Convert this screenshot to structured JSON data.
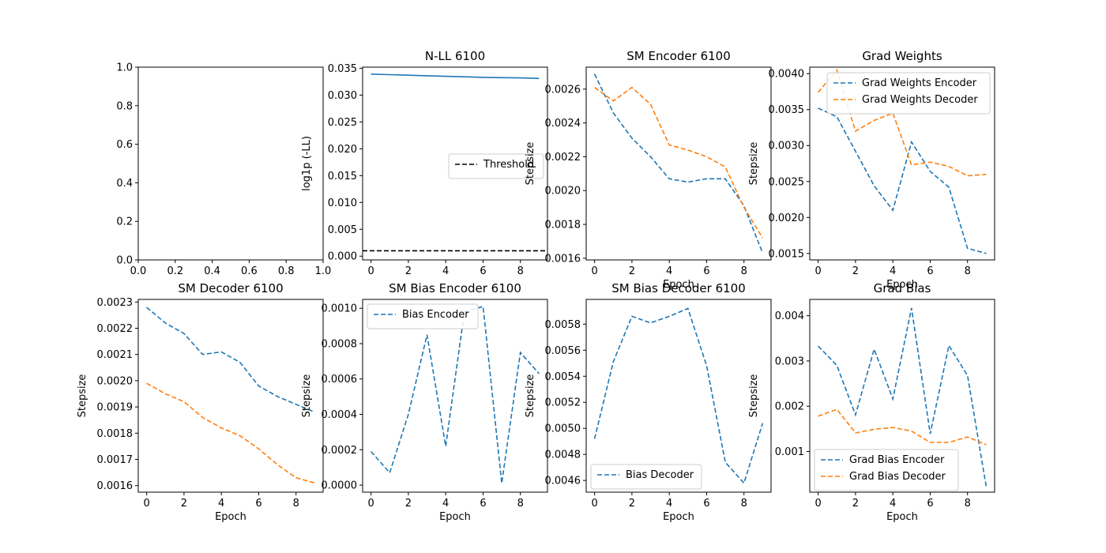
{
  "figure": {
    "background": "#ffffff"
  },
  "chart_data": [
    {
      "id": "empty",
      "type": "line",
      "title": "",
      "xlabel": "",
      "ylabel": "",
      "xlim": [
        0,
        1
      ],
      "ylim": [
        0,
        1
      ],
      "xticks": [
        0,
        0.2,
        0.4,
        0.6,
        0.8,
        1
      ],
      "yticks": [
        0,
        0.2,
        0.4,
        0.6,
        0.8,
        1
      ],
      "xtick_labels": [
        "0.0",
        "0.2",
        "0.4",
        "0.6",
        "0.8",
        "1.0"
      ],
      "ytick_labels": [
        "0.0",
        "0.2",
        "0.4",
        "0.6",
        "0.8",
        "1.0"
      ],
      "grid": false,
      "series": []
    },
    {
      "id": "nll",
      "type": "line",
      "title": "N-LL 6100",
      "xlabel": "",
      "ylabel": "log1p (-LL)",
      "xlim": [
        -0.45,
        9.45
      ],
      "ylim": [
        -0.0007,
        0.0352
      ],
      "xticks": [
        0,
        2,
        4,
        6,
        8
      ],
      "yticks": [
        0,
        0.005,
        0.01,
        0.015,
        0.02,
        0.025,
        0.03,
        0.035
      ],
      "xtick_labels": [
        "0",
        "2",
        "4",
        "6",
        "8"
      ],
      "ytick_labels": [
        "0.000",
        "0.005",
        "0.010",
        "0.015",
        "0.020",
        "0.025",
        "0.030",
        "0.035"
      ],
      "grid": false,
      "legend": {
        "position": "center-right",
        "entries": [
          "Threshold"
        ]
      },
      "series": [
        {
          "x": [
            0,
            1,
            2,
            3,
            4,
            5,
            6,
            7,
            8,
            9
          ],
          "values": [
            0.0339,
            0.0338,
            0.0337,
            0.0336,
            0.0335,
            0.0334,
            0.0333,
            0.03325,
            0.0332,
            0.0331
          ],
          "color": "#1f77b4",
          "dash": "solid"
        },
        {
          "name": "Threshold",
          "hline": 0.001,
          "color": "#000000",
          "dash": "dashed"
        }
      ]
    },
    {
      "id": "sm_encoder",
      "type": "line",
      "title": "SM Encoder 6100",
      "xlabel": "Epoch",
      "ylabel": "Stepsize",
      "xlim": [
        -0.45,
        9.45
      ],
      "ylim": [
        0.00159,
        0.00273
      ],
      "xticks": [
        0,
        2,
        4,
        6,
        8
      ],
      "yticks": [
        0.0016,
        0.0018,
        0.002,
        0.0022,
        0.0024,
        0.0026
      ],
      "xtick_labels": [
        "0",
        "2",
        "4",
        "6",
        "8"
      ],
      "ytick_labels": [
        "0.0016",
        "0.0018",
        "0.0020",
        "0.0022",
        "0.0024",
        "0.0026"
      ],
      "grid": false,
      "series": [
        {
          "x": [
            0,
            1,
            2,
            3,
            4,
            5,
            6,
            7,
            8,
            9
          ],
          "values": [
            0.00269,
            0.00246,
            0.00231,
            0.0022,
            0.00207,
            0.00205,
            0.00207,
            0.00207,
            0.00191,
            0.00163
          ],
          "color": "#1f77b4",
          "dash": "dashed"
        },
        {
          "x": [
            0,
            1,
            2,
            3,
            4,
            5,
            6,
            7,
            8,
            9
          ],
          "values": [
            0.00261,
            0.00253,
            0.00261,
            0.00251,
            0.00227,
            0.00224,
            0.0022,
            0.00214,
            0.0019,
            0.00172
          ],
          "color": "#ff7f0e",
          "dash": "dashed"
        }
      ]
    },
    {
      "id": "grad_weights",
      "type": "line",
      "title": "Grad Weights",
      "xlabel": "Epoch",
      "ylabel": "Stepsize",
      "xlim": [
        -0.45,
        9.45
      ],
      "ylim": [
        0.00141,
        0.00409
      ],
      "xticks": [
        0,
        2,
        4,
        6,
        8
      ],
      "yticks": [
        0.0015,
        0.002,
        0.0025,
        0.003,
        0.0035,
        0.004
      ],
      "xtick_labels": [
        "0",
        "2",
        "4",
        "6",
        "8"
      ],
      "ytick_labels": [
        "0.0015",
        "0.0020",
        "0.0025",
        "0.0030",
        "0.0035",
        "0.0040"
      ],
      "grid": false,
      "legend": {
        "position": "upper-right",
        "entries": [
          "Grad Weights Encoder",
          "Grad Weights Decoder"
        ]
      },
      "series": [
        {
          "name": "Grad Weights Encoder",
          "x": [
            0,
            1,
            2,
            3,
            4,
            5,
            6,
            7,
            8,
            9
          ],
          "values": [
            0.00352,
            0.0034,
            0.00292,
            0.00244,
            0.0021,
            0.00305,
            0.00264,
            0.00242,
            0.00157,
            0.0015
          ],
          "color": "#1f77b4",
          "dash": "dashed"
        },
        {
          "name": "Grad Weights Decoder",
          "x": [
            0,
            1,
            2,
            3,
            4,
            5,
            6,
            7,
            8,
            9
          ],
          "values": [
            0.00374,
            0.00405,
            0.0032,
            0.00335,
            0.00345,
            0.00273,
            0.00277,
            0.00271,
            0.00258,
            0.0026
          ],
          "color": "#ff7f0e",
          "dash": "dashed"
        }
      ]
    },
    {
      "id": "sm_decoder",
      "type": "line",
      "title": "SM Decoder 6100",
      "xlabel": "Epoch",
      "ylabel": "Stepsize",
      "xlim": [
        -0.45,
        9.45
      ],
      "ylim": [
        0.001575,
        0.00231
      ],
      "xticks": [
        0,
        2,
        4,
        6,
        8
      ],
      "yticks": [
        0.0016,
        0.0017,
        0.0018,
        0.0019,
        0.002,
        0.0021,
        0.0022,
        0.0023
      ],
      "xtick_labels": [
        "0",
        "2",
        "4",
        "6",
        "8"
      ],
      "ytick_labels": [
        "0.0016",
        "0.0017",
        "0.0018",
        "0.0019",
        "0.0020",
        "0.0021",
        "0.0022",
        "0.0023"
      ],
      "grid": false,
      "series": [
        {
          "x": [
            0,
            1,
            2,
            3,
            4,
            5,
            6,
            7,
            8,
            9
          ],
          "values": [
            0.00228,
            0.00222,
            0.00218,
            0.0021,
            0.00211,
            0.00207,
            0.00198,
            0.00194,
            0.00191,
            0.00188
          ],
          "color": "#1f77b4",
          "dash": "dashed"
        },
        {
          "x": [
            0,
            1,
            2,
            3,
            4,
            5,
            6,
            7,
            8,
            9
          ],
          "values": [
            0.00199,
            0.00195,
            0.00192,
            0.00186,
            0.00182,
            0.00179,
            0.00174,
            0.00168,
            0.00163,
            0.00161
          ],
          "color": "#ff7f0e",
          "dash": "dashed"
        }
      ]
    },
    {
      "id": "sm_bias_encoder",
      "type": "line",
      "title": "SM Bias Encoder 6100",
      "xlabel": "Epoch",
      "ylabel": "Stepsize",
      "xlim": [
        -0.45,
        9.45
      ],
      "ylim": [
        -4e-05,
        0.00105
      ],
      "xticks": [
        0,
        2,
        4,
        6,
        8
      ],
      "yticks": [
        0,
        0.0002,
        0.0004,
        0.0006,
        0.0008,
        0.001
      ],
      "xtick_labels": [
        "0",
        "2",
        "4",
        "6",
        "8"
      ],
      "ytick_labels": [
        "0.0000",
        "0.0002",
        "0.0004",
        "0.0006",
        "0.0008",
        "0.0010"
      ],
      "grid": false,
      "legend": {
        "position": "upper-left",
        "entries": [
          "Bias Encoder"
        ]
      },
      "series": [
        {
          "name": "Bias Encoder",
          "x": [
            0,
            1,
            2,
            3,
            4,
            5,
            6,
            7,
            8,
            9
          ],
          "values": [
            0.00019,
            7e-05,
            0.0004,
            0.00085,
            0.00022,
            0.00098,
            0.00101,
            1e-05,
            0.00075,
            0.00063
          ],
          "color": "#1f77b4",
          "dash": "dashed"
        }
      ]
    },
    {
      "id": "sm_bias_decoder",
      "type": "line",
      "title": "SM Bias Decoder 6100",
      "xlabel": "Epoch",
      "ylabel": "Stepsize",
      "xlim": [
        -0.45,
        9.45
      ],
      "ylim": [
        0.00451,
        0.00599
      ],
      "xticks": [
        0,
        2,
        4,
        6,
        8
      ],
      "yticks": [
        0.0046,
        0.0048,
        0.005,
        0.0052,
        0.0054,
        0.0056,
        0.0058
      ],
      "xtick_labels": [
        "0",
        "2",
        "4",
        "6",
        "8"
      ],
      "ytick_labels": [
        "0.0046",
        "0.0048",
        "0.0050",
        "0.0052",
        "0.0054",
        "0.0056",
        "0.0058"
      ],
      "grid": false,
      "legend": {
        "position": "lower-left",
        "entries": [
          "Bias Decoder"
        ]
      },
      "series": [
        {
          "name": "Bias Decoder",
          "x": [
            0,
            1,
            2,
            3,
            4,
            5,
            6,
            7,
            8,
            9
          ],
          "values": [
            0.00492,
            0.00551,
            0.00586,
            0.00581,
            0.00586,
            0.00592,
            0.00548,
            0.00474,
            0.00458,
            0.00504
          ],
          "color": "#1f77b4",
          "dash": "dashed"
        }
      ]
    },
    {
      "id": "grad_bias",
      "type": "line",
      "title": "Grad Bias",
      "xlabel": "Epoch",
      "ylabel": "Stepsize",
      "xlim": [
        -0.45,
        9.45
      ],
      "ylim": [
        0.0001,
        0.00436
      ],
      "xticks": [
        0,
        2,
        4,
        6,
        8
      ],
      "yticks": [
        0.001,
        0.002,
        0.003,
        0.004
      ],
      "xtick_labels": [
        "0",
        "2",
        "4",
        "6",
        "8"
      ],
      "ytick_labels": [
        "0.001",
        "0.002",
        "0.003",
        "0.004"
      ],
      "grid": false,
      "legend": {
        "position": "lower-left",
        "entries": [
          "Grad Bias Encoder",
          "Grad Bias Decoder"
        ]
      },
      "series": [
        {
          "name": "Grad Bias Encoder",
          "x": [
            0,
            1,
            2,
            3,
            4,
            5,
            6,
            7,
            8,
            9
          ],
          "values": [
            0.00333,
            0.0029,
            0.00181,
            0.00326,
            0.00216,
            0.00417,
            0.00139,
            0.00334,
            0.00268,
            0.00022
          ],
          "color": "#1f77b4",
          "dash": "dashed"
        },
        {
          "name": "Grad Bias Decoder",
          "x": [
            0,
            1,
            2,
            3,
            4,
            5,
            6,
            7,
            8,
            9
          ],
          "values": [
            0.00178,
            0.00193,
            0.00141,
            0.00149,
            0.00153,
            0.00145,
            0.0012,
            0.0012,
            0.00132,
            0.00115
          ],
          "color": "#ff7f0e",
          "dash": "dashed"
        }
      ]
    }
  ]
}
